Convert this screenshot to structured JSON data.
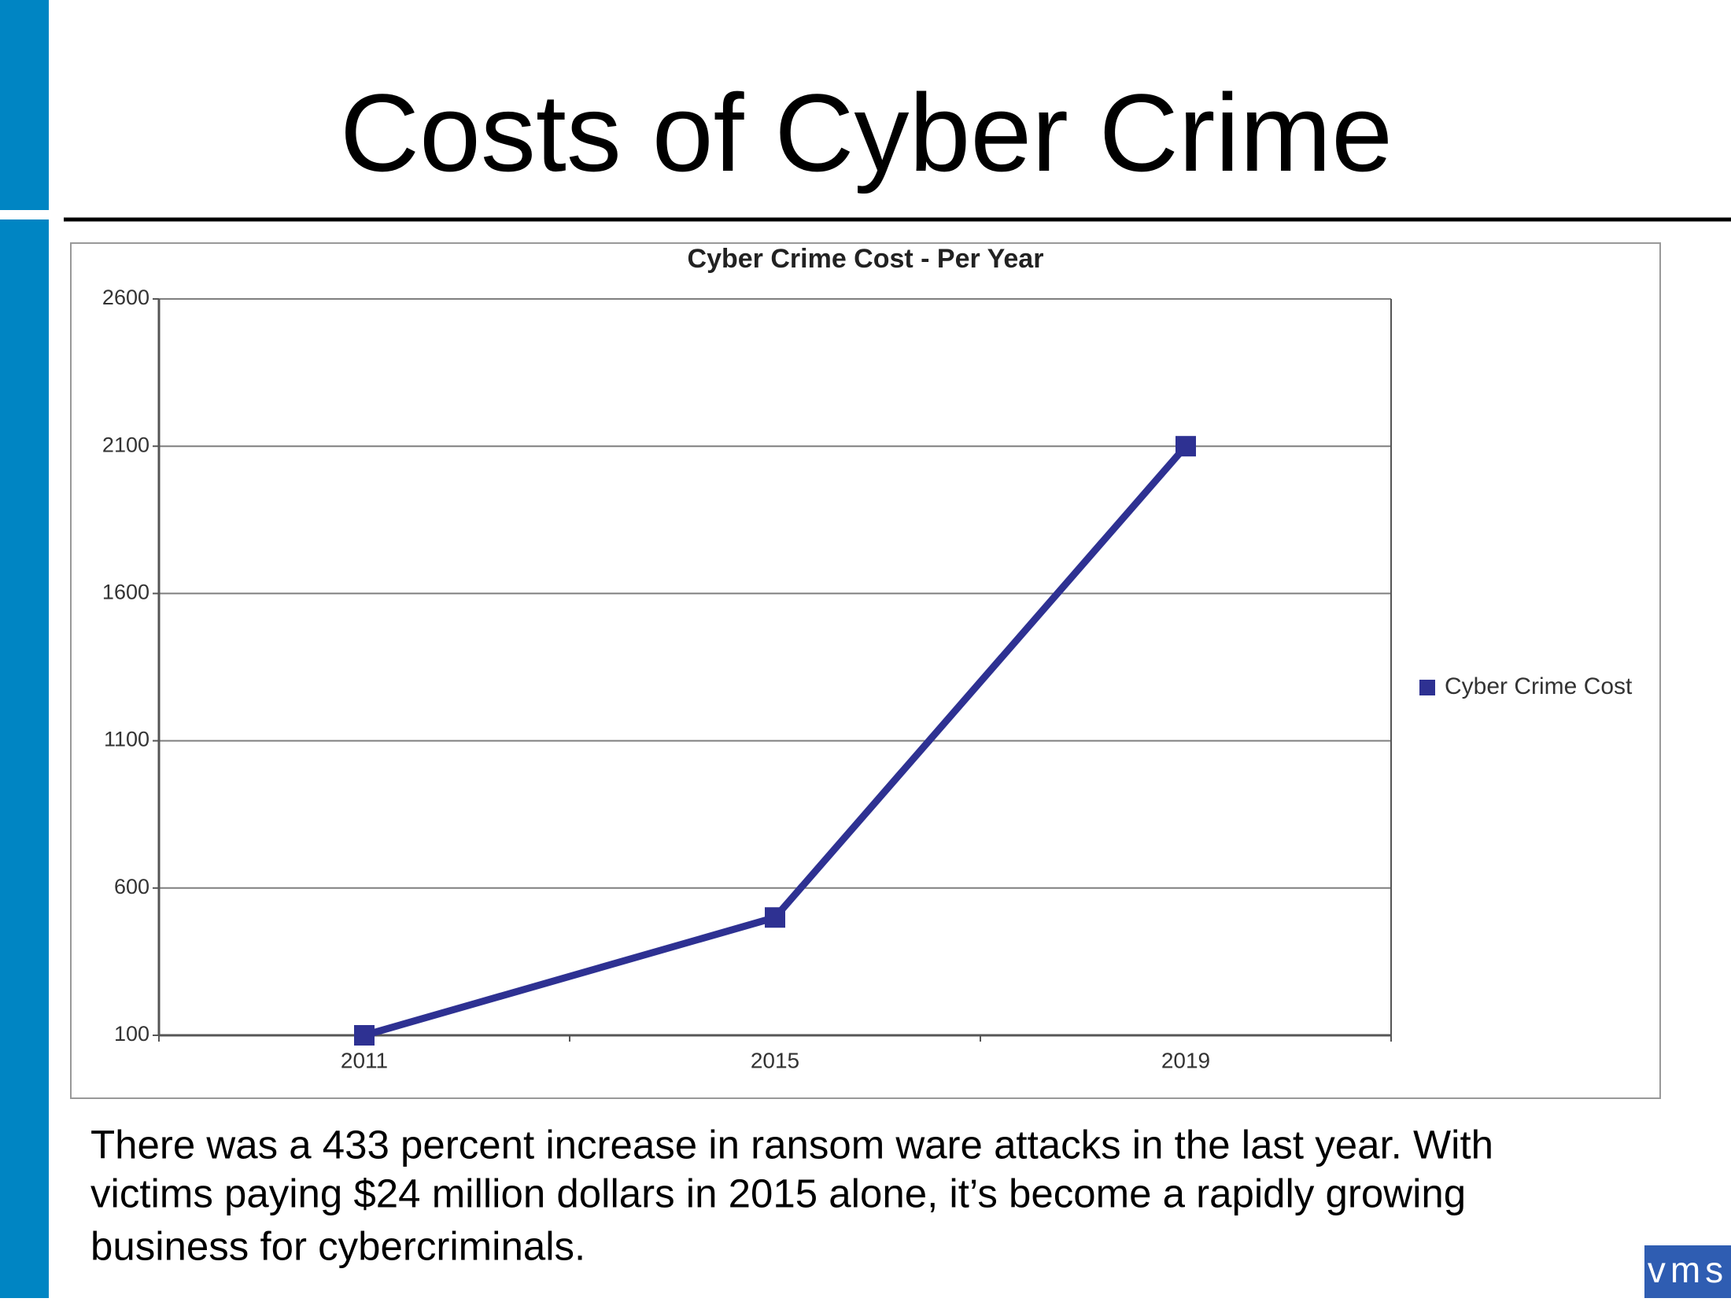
{
  "slide": {
    "title": "Costs of Cyber Crime",
    "body_lines": [
      "There was a 433 percent increase in ransom ware attacks in the last year. With",
      "victims paying $24 million dollars in 2015 alone, it’s become a rapidly growing",
      "business for cybercriminals."
    ],
    "logo": "vms"
  },
  "chart_data": {
    "type": "line",
    "title": "Cyber Crime Cost - Per Year",
    "categories": [
      "2011",
      "2015",
      "2019"
    ],
    "series": [
      {
        "name": "Cyber Crime Cost",
        "color": "#2e3192",
        "values": [
          100,
          500,
          2100
        ]
      }
    ],
    "ylim": [
      100,
      2600
    ],
    "yticks": [
      100,
      600,
      1100,
      1600,
      2100,
      2600
    ],
    "grid": true,
    "legend": "right"
  }
}
